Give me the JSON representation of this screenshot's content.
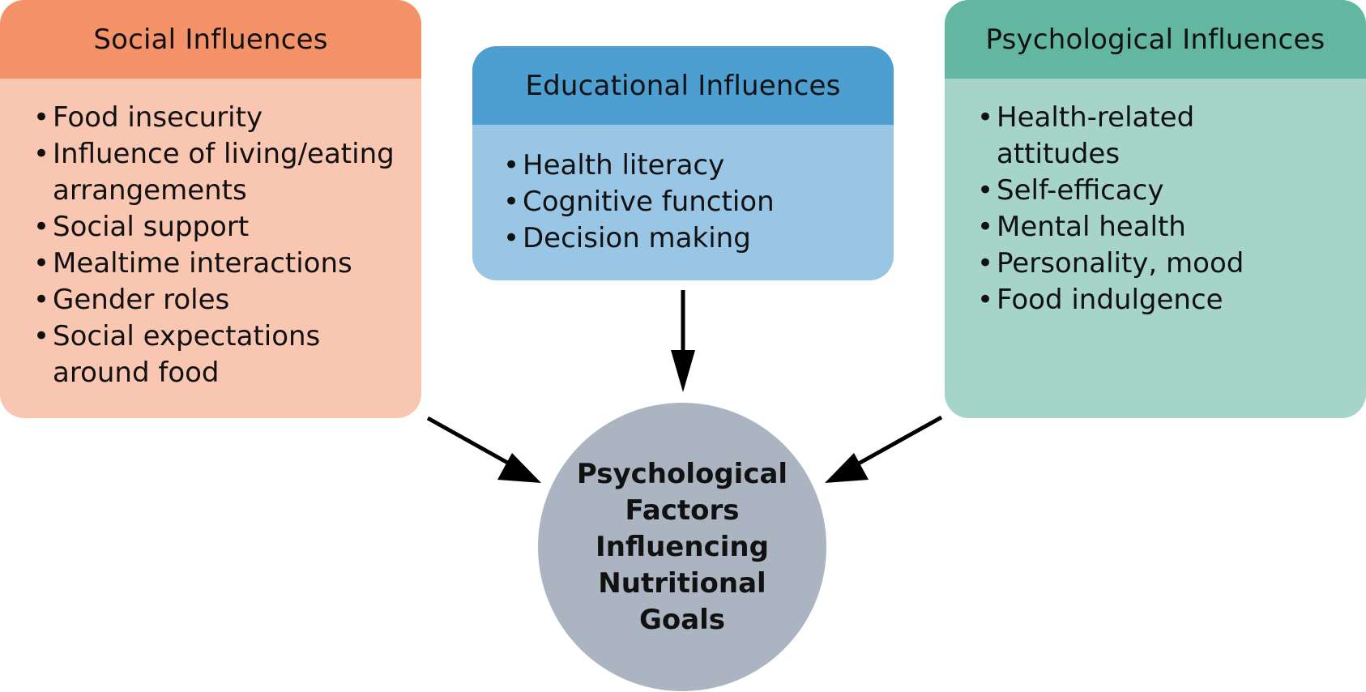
{
  "social": {
    "title": "Social Influences",
    "items": [
      "Food insecurity",
      "Influence of living/eating arrangements",
      "Social support",
      "Mealtime interactions",
      "Gender roles",
      "Social expectations around food"
    ],
    "header_color": "#f4926a",
    "body_color": "#f9c6b1"
  },
  "educational": {
    "title": "Educational Influences",
    "items": [
      "Health literacy",
      "Cognitive function",
      "Decision making"
    ],
    "header_color": "#4d9ed1",
    "body_color": "#9ac6e6"
  },
  "psychological": {
    "title": "Psychological Influences",
    "items": [
      "Health-related attitudes",
      "Self-efficacy",
      "Mental health",
      "Personality, mood",
      "Food indulgence"
    ],
    "header_color": "#63b7a0",
    "body_color": "#a6d4c8"
  },
  "center": {
    "label": "Psychological Factors Influencing Nutritional Goals",
    "color": "#aab5c1"
  }
}
